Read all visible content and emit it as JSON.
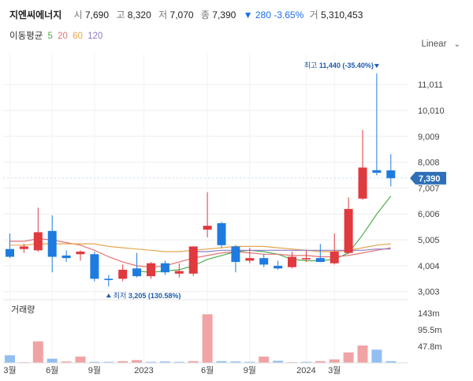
{
  "header": {
    "name": "지엔씨에너지",
    "open_label": "시",
    "open": "7,690",
    "high_label": "고",
    "high": "8,320",
    "low_label": "저",
    "low": "7,070",
    "close_label": "종",
    "close": "7,390",
    "change": "▼ 280 -3.65%",
    "volume_label": "거",
    "volume": "5,310,453"
  },
  "moving_average": {
    "label": "이동평균",
    "periods": [
      {
        "value": "5",
        "color": "#4caf50"
      },
      {
        "value": "20",
        "color": "#e57373"
      },
      {
        "value": "60",
        "color": "#e5a64e"
      },
      {
        "value": "120",
        "color": "#8e7cc3"
      }
    ]
  },
  "scale_button": {
    "label": "Linear",
    "icon": "chevron-down-icon"
  },
  "colors": {
    "up": "#e0393e",
    "down": "#1e7be0",
    "grid": "#eeeeee"
  },
  "chart_data": {
    "type": "candlestick",
    "y_ticks": [
      "11,011",
      "10,010",
      "9,009",
      "8,008",
      "7,007",
      "6,006",
      "5,005",
      "4,004",
      "3,003"
    ],
    "y_tick_values": [
      11011,
      10010,
      9009,
      8008,
      7007,
      6006,
      5005,
      4004,
      3003
    ],
    "ylim": [
      2750,
      11900
    ],
    "x_ticks": [
      {
        "label": "3월",
        "index": 0
      },
      {
        "label": "6월",
        "index": 3
      },
      {
        "label": "9월",
        "index": 6
      },
      {
        "label": "2023",
        "index": 9.5
      },
      {
        "label": "6월",
        "index": 14
      },
      {
        "label": "9월",
        "index": 17
      },
      {
        "label": "2024",
        "index": 21
      },
      {
        "label": "3월",
        "index": 23
      }
    ],
    "candles": [
      {
        "o": 4650,
        "h": 5250,
        "l": 4300,
        "c": 4350
      },
      {
        "o": 4650,
        "h": 4850,
        "l": 4500,
        "c": 4750
      },
      {
        "o": 4600,
        "h": 6250,
        "l": 4550,
        "c": 5300
      },
      {
        "o": 5350,
        "h": 5950,
        "l": 3750,
        "c": 4350
      },
      {
        "o": 4400,
        "h": 4600,
        "l": 4150,
        "c": 4300
      },
      {
        "o": 4450,
        "h": 4600,
        "l": 4200,
        "c": 4550
      },
      {
        "o": 4450,
        "h": 4550,
        "l": 3400,
        "c": 3500
      },
      {
        "o": 3500,
        "h": 3650,
        "l": 3205,
        "c": 3450
      },
      {
        "o": 3500,
        "h": 4050,
        "l": 3400,
        "c": 3850
      },
      {
        "o": 3900,
        "h": 4500,
        "l": 3550,
        "c": 3600
      },
      {
        "o": 3600,
        "h": 4150,
        "l": 3500,
        "c": 4100
      },
      {
        "o": 4100,
        "h": 4200,
        "l": 3650,
        "c": 3750
      },
      {
        "o": 3700,
        "h": 4100,
        "l": 3550,
        "c": 3800
      },
      {
        "o": 3700,
        "h": 4750,
        "l": 3600,
        "c": 4750
      },
      {
        "o": 5400,
        "h": 6850,
        "l": 5100,
        "c": 5550
      },
      {
        "o": 5650,
        "h": 5700,
        "l": 4700,
        "c": 4800
      },
      {
        "o": 4750,
        "h": 4800,
        "l": 3750,
        "c": 4150
      },
      {
        "o": 4200,
        "h": 4700,
        "l": 4100,
        "c": 4300
      },
      {
        "o": 4300,
        "h": 4450,
        "l": 3950,
        "c": 4050
      },
      {
        "o": 4000,
        "h": 4200,
        "l": 3850,
        "c": 3900
      },
      {
        "o": 3950,
        "h": 4550,
        "l": 3900,
        "c": 4350
      },
      {
        "o": 4250,
        "h": 4600,
        "l": 4150,
        "c": 4300
      },
      {
        "o": 4300,
        "h": 4850,
        "l": 4150,
        "c": 4150
      },
      {
        "o": 4100,
        "h": 5250,
        "l": 4050,
        "c": 4550
      },
      {
        "o": 4500,
        "h": 6650,
        "l": 4450,
        "c": 6200
      },
      {
        "o": 6600,
        "h": 9250,
        "l": 6550,
        "c": 7800
      },
      {
        "o": 7700,
        "h": 11440,
        "l": 7500,
        "c": 7600
      },
      {
        "o": 7690,
        "h": 8320,
        "l": 7070,
        "c": 7390
      }
    ],
    "moving_averages": {
      "ma5": [
        null,
        null,
        null,
        null,
        null,
        null,
        null,
        null,
        null,
        3800,
        3750,
        3800,
        3850,
        4000,
        4250,
        4400,
        4550,
        4600,
        4550,
        4450,
        4250,
        4200,
        4200,
        4250,
        4500,
        5200,
        6000,
        6700
      ],
      "ma20": [
        4950,
        4950,
        5050,
        5000,
        4900,
        4800,
        4600,
        4350,
        4150,
        4000,
        3950,
        4000,
        4150,
        4300,
        4400,
        4500,
        4550,
        4500,
        4450,
        4450,
        4400,
        4400,
        4350,
        4350,
        4400,
        4500,
        4600,
        4700
      ],
      "ma60": [
        4800,
        4800,
        4850,
        4850,
        4850,
        4850,
        4850,
        4750,
        4700,
        4650,
        4600,
        4550,
        4550,
        4600,
        4650,
        4700,
        4750,
        4750,
        4750,
        4700,
        4650,
        4600,
        4550,
        4550,
        4600,
        4700,
        4800,
        4850
      ],
      "ma120": [
        null,
        null,
        null,
        null,
        null,
        null,
        null,
        null,
        null,
        null,
        null,
        null,
        null,
        4550,
        4550,
        4600,
        4600,
        4600,
        4600,
        4600,
        4600,
        4600,
        4600,
        4600,
        4600,
        4600,
        4650,
        4650
      ]
    },
    "current_price_label": "7,390",
    "current_price": 7390,
    "high_annotation": {
      "label": "최고",
      "value": "11,440 (-35.40%)",
      "index": 26,
      "price": 11440
    },
    "low_annotation": {
      "label": "최저",
      "value": "3,205 (130.58%)",
      "index": 7,
      "price": 3205
    },
    "volume": {
      "label": "거래량",
      "ticks": [
        "143m",
        "95.5m",
        "47.8m"
      ],
      "tick_values": [
        143,
        95.5,
        47.8
      ],
      "max": 175,
      "values": [
        22,
        2,
        62,
        12,
        4,
        18,
        3,
        3,
        5,
        8,
        3,
        4,
        3,
        5,
        140,
        5,
        4,
        3,
        18,
        6,
        2,
        3,
        5,
        10,
        30,
        50,
        38,
        5
      ],
      "up": [
        false,
        true,
        true,
        false,
        true,
        true,
        false,
        false,
        true,
        true,
        false,
        false,
        false,
        true,
        true,
        false,
        false,
        false,
        true,
        false,
        true,
        false,
        true,
        true,
        true,
        true,
        false,
        false
      ]
    }
  }
}
